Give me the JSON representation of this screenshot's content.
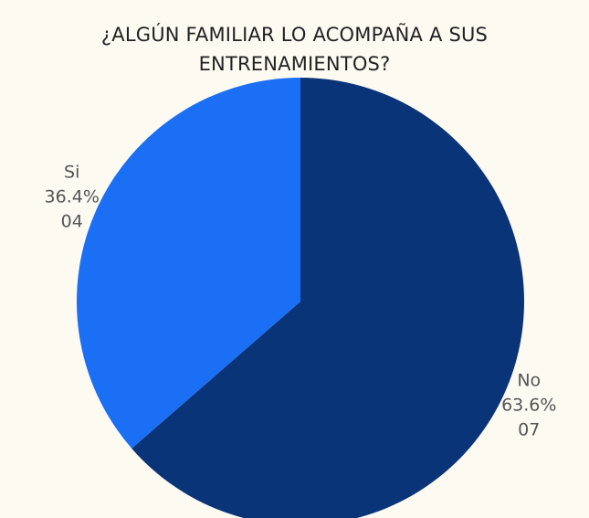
{
  "chart_data": {
    "type": "pie",
    "title": "¿ALGÚN FAMILIAR LO ACOMPAÑA A SUS ENTRENAMIENTOS?",
    "categories": [
      "No",
      "Si"
    ],
    "values": [
      63.6,
      36.4
    ],
    "value_labels": [
      "63.6%",
      "36.4%"
    ],
    "count_labels": [
      "07",
      "04"
    ],
    "colors": [
      "#0a3478",
      "#1a6ff5"
    ]
  }
}
